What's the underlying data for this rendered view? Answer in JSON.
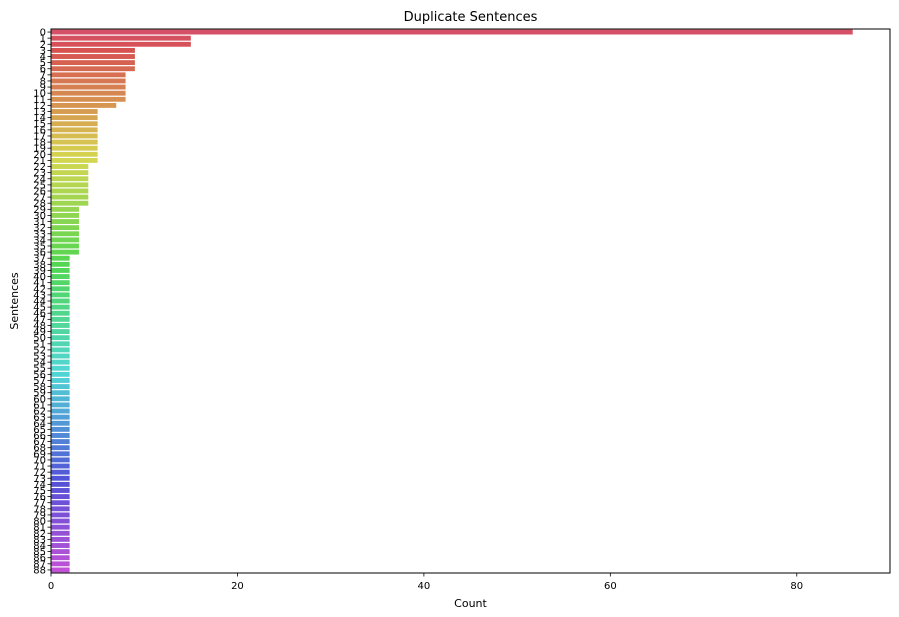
{
  "chart_data": {
    "type": "bar",
    "orientation": "horizontal",
    "title": "Duplicate Sentences",
    "xlabel": "Count",
    "ylabel": "Sentences",
    "xlim": [
      0,
      90
    ],
    "x_ticks": [
      0,
      20,
      40,
      60,
      80
    ],
    "grid": false,
    "legend": "none",
    "categories": [
      "0",
      "1",
      "2",
      "3",
      "4",
      "5",
      "6",
      "7",
      "8",
      "9",
      "10",
      "11",
      "12",
      "13",
      "14",
      "15",
      "16",
      "17",
      "18",
      "19",
      "20",
      "21",
      "22",
      "23",
      "24",
      "25",
      "26",
      "27",
      "28",
      "29",
      "30",
      "31",
      "32",
      "33",
      "34",
      "35",
      "36",
      "37",
      "38",
      "39",
      "40",
      "41",
      "42",
      "43",
      "44",
      "45",
      "46",
      "47",
      "48",
      "49",
      "50",
      "51",
      "52",
      "53",
      "54",
      "55",
      "56",
      "57",
      "58",
      "59",
      "60",
      "61",
      "62",
      "63",
      "64",
      "65",
      "66",
      "67",
      "68",
      "69",
      "70",
      "71",
      "72",
      "73",
      "74",
      "75",
      "76",
      "77",
      "78",
      "79",
      "80",
      "81",
      "82",
      "83",
      "84",
      "85",
      "86",
      "87",
      "88"
    ],
    "values": [
      86,
      15,
      15,
      9,
      9,
      9,
      9,
      8,
      8,
      8,
      8,
      8,
      7,
      5,
      5,
      5,
      5,
      5,
      5,
      5,
      5,
      5,
      4,
      4,
      4,
      4,
      4,
      4,
      4,
      3,
      3,
      3,
      3,
      3,
      3,
      3,
      3,
      2,
      2,
      2,
      2,
      2,
      2,
      2,
      2,
      2,
      2,
      2,
      2,
      2,
      2,
      2,
      2,
      2,
      2,
      2,
      2,
      2,
      2,
      2,
      2,
      2,
      2,
      2,
      2,
      2,
      2,
      2,
      2,
      2,
      2,
      2,
      2,
      2,
      2,
      2,
      2,
      2,
      2,
      2,
      2,
      2,
      2,
      2,
      2,
      2,
      2,
      2,
      2
    ]
  }
}
